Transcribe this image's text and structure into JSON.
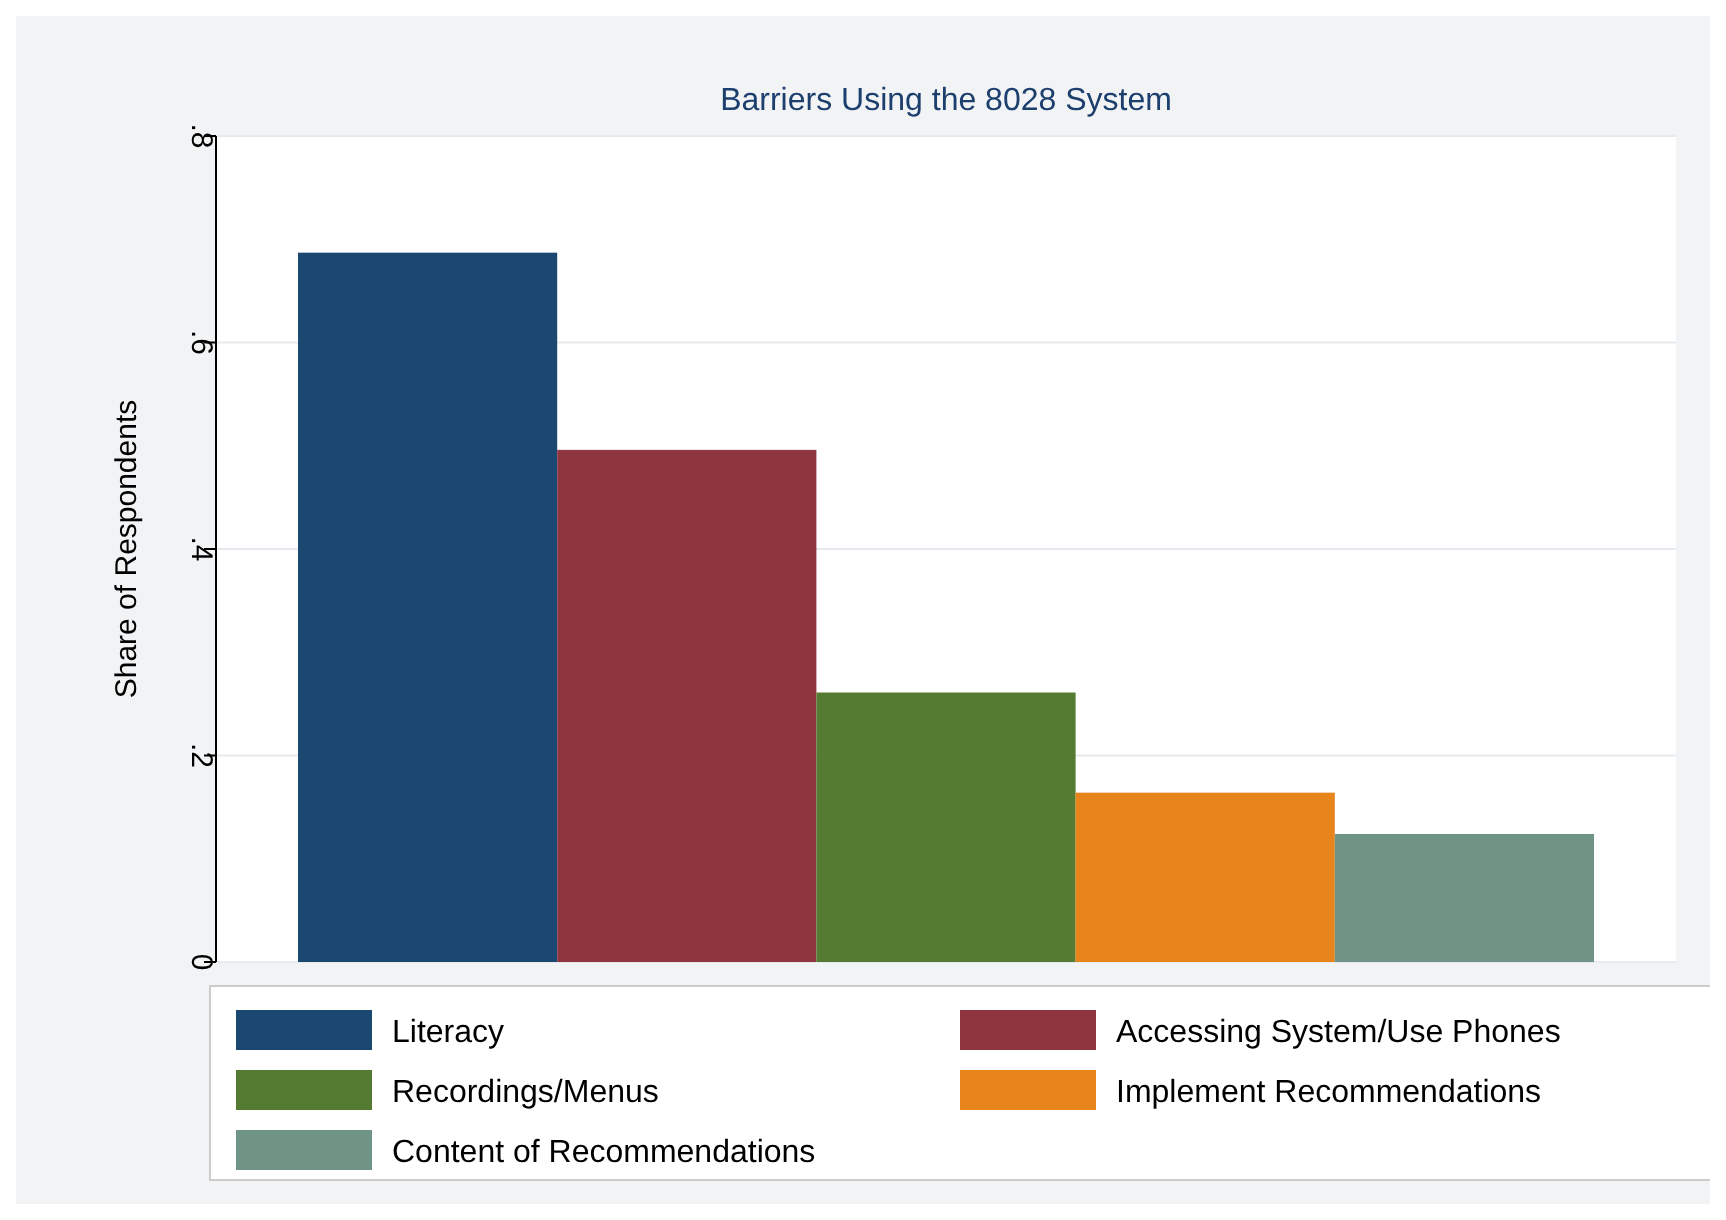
{
  "chart_data": {
    "type": "bar",
    "title": "Barriers Using the 8028 System",
    "ylabel": "Share of Respondents",
    "categories": [
      null
    ],
    "series": [
      {
        "name": "Literacy",
        "color": "#1a4870",
        "values": [
          0.687
        ]
      },
      {
        "name": "Accessing System/Use Phones",
        "color": "#8f3540",
        "values": [
          0.496
        ]
      },
      {
        "name": "Recordings/Menus",
        "color": "#557a31",
        "values": [
          0.261
        ]
      },
      {
        "name": "Implement Recommendations",
        "color": "#e8841c",
        "values": [
          0.164
        ]
      },
      {
        "name": "Content of Recommendations",
        "color": "#6f9384",
        "values": [
          0.124
        ]
      }
    ],
    "ylim": [
      0,
      0.8
    ],
    "yticks": [
      {
        "value": 0,
        "label": "0"
      },
      {
        "value": 0.2,
        "label": ".2"
      },
      {
        "value": 0.4,
        "label": ".4"
      },
      {
        "value": 0.6,
        "label": ".6"
      },
      {
        "value": 0.8,
        "label": ".8"
      }
    ],
    "grid": "y",
    "legend": "bottom"
  }
}
